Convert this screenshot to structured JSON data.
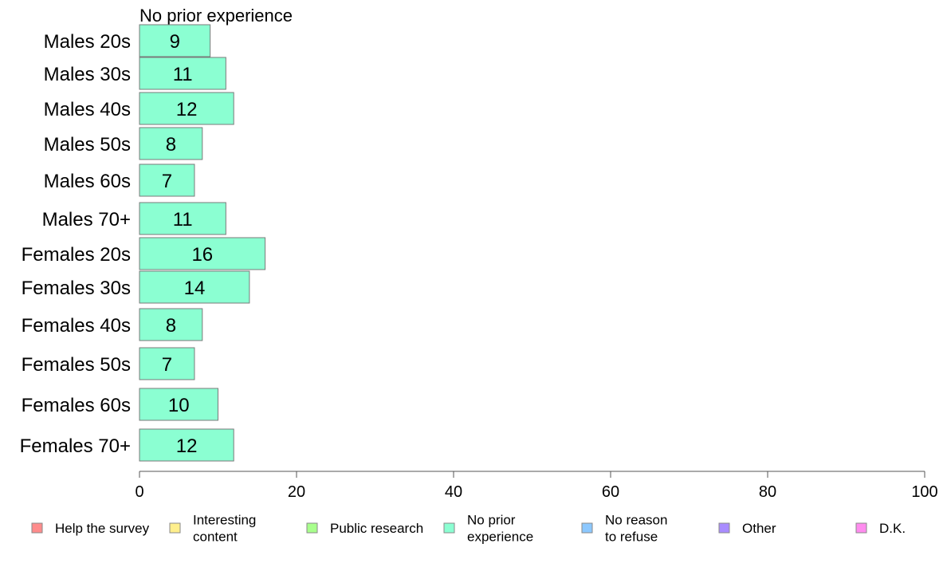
{
  "chart_data": {
    "type": "bar",
    "orientation": "horizontal",
    "title": "No prior experience",
    "categories": [
      "Males 20s",
      "Males 30s",
      "Males 40s",
      "Males 50s",
      "Males 60s",
      "Males 70+",
      "Females 20s",
      "Females 30s",
      "Females 40s",
      "Females 50s",
      "Females 60s",
      "Females 70+"
    ],
    "values": [
      9,
      11,
      12,
      8,
      7,
      11,
      16,
      14,
      8,
      7,
      10,
      12
    ],
    "value_labels": [
      "9",
      "11",
      "12",
      "8",
      "7",
      "11",
      "16",
      "14",
      "8",
      "7",
      "10",
      "12"
    ],
    "xlim": [
      0,
      100
    ],
    "xticks": [
      "0",
      "20",
      "40",
      "60",
      "80",
      "100"
    ],
    "grid": false,
    "bar_color": "#8bffd2",
    "bar_edge_color": "#7a7a7a",
    "legend": {
      "placement": "bottom",
      "items": [
        {
          "lines": [
            "Help the survey"
          ],
          "color": "#ff8c8c"
        },
        {
          "lines": [
            "Interesting",
            "content"
          ],
          "color": "#ffef8c"
        },
        {
          "lines": [
            "Public research"
          ],
          "color": "#a8ff8c"
        },
        {
          "lines": [
            "No prior",
            "experience"
          ],
          "color": "#8bffd2"
        },
        {
          "lines": [
            "No reason",
            "to refuse"
          ],
          "color": "#8cc8ff"
        },
        {
          "lines": [
            "Other"
          ],
          "color": "#a98cff"
        },
        {
          "lines": [
            "D.K."
          ],
          "color": "#ff8cef"
        }
      ]
    }
  }
}
